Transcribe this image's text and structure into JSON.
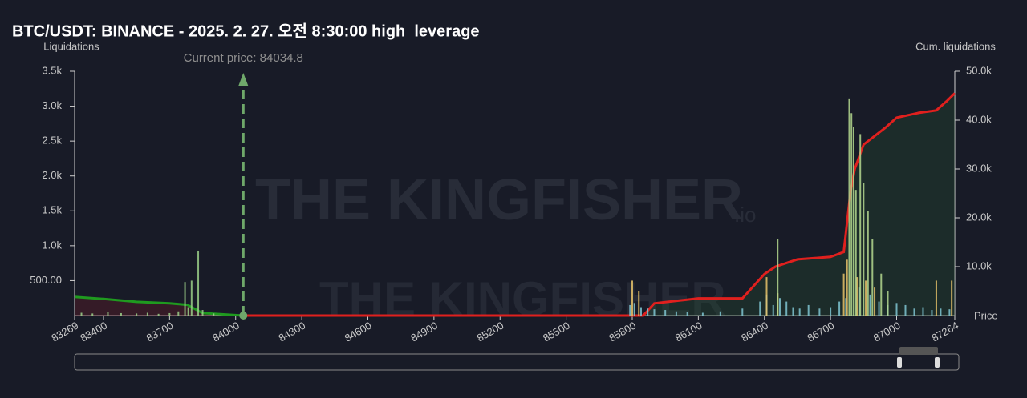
{
  "chart_data": {
    "type": "bar",
    "title": "BTC/USDT: BINANCE - 2025. 2. 27. 오전 8:30:00 high_leverage",
    "y_label": "Liquidations",
    "y2_label": "Cum. liquidations",
    "x_label": "Price",
    "annotation": "Current price: 84034.8",
    "current_price": 84034.8,
    "watermark": "THE KINGFISHER",
    "watermark_suffix": ".io",
    "xlim": [
      83269,
      87264
    ],
    "xticks": [
      83269,
      83400,
      83700,
      84000,
      84300,
      84600,
      84900,
      85200,
      85500,
      85800,
      86100,
      86400,
      86700,
      87000,
      87264
    ],
    "ylim": [
      0,
      3500
    ],
    "yticks": [
      {
        "value": 500,
        "label": "500.00"
      },
      {
        "value": 1000,
        "label": "1.0k"
      },
      {
        "value": 1500,
        "label": "1.5k"
      },
      {
        "value": 2000,
        "label": "2.0k"
      },
      {
        "value": 2500,
        "label": "2.5k"
      },
      {
        "value": 3000,
        "label": "3.0k"
      },
      {
        "value": 3500,
        "label": "3.5k"
      }
    ],
    "y2lim": [
      0,
      50000
    ],
    "y2ticks": [
      {
        "value": 10000,
        "label": "10.0k"
      },
      {
        "value": 20000,
        "label": "20.0k"
      },
      {
        "value": 30000,
        "label": "30.0k"
      },
      {
        "value": 40000,
        "label": "40.0k"
      },
      {
        "value": 50000,
        "label": "50.0k"
      }
    ],
    "series": [
      {
        "type": "bar",
        "color": "#9bd08a",
        "x": [
          83300,
          83350,
          83420,
          83480,
          83550,
          83600,
          83650,
          83700,
          83740,
          83770,
          83785,
          83800,
          83830,
          83850,
          83900
        ],
        "values": [
          40,
          30,
          50,
          35,
          30,
          40,
          25,
          35,
          60,
          480,
          120,
          500,
          930,
          80,
          30
        ]
      },
      {
        "type": "bar",
        "color": "#7fc6d2",
        "x": [
          85790,
          85810,
          85840,
          85870,
          85900,
          85950,
          86000,
          86050,
          86120,
          86200,
          86300,
          86380,
          86410,
          86440,
          86470,
          86500,
          86530,
          86560,
          86600,
          86650,
          86700,
          86740,
          86770,
          86830,
          86880,
          86920,
          86960,
          87000,
          87040,
          87080,
          87120,
          87160,
          87200,
          87240
        ],
        "values": [
          150,
          180,
          120,
          100,
          90,
          80,
          60,
          50,
          40,
          60,
          100,
          200,
          300,
          150,
          250,
          200,
          120,
          100,
          150,
          100,
          120,
          200,
          250,
          400,
          300,
          200,
          150,
          180,
          150,
          100,
          120,
          80,
          100,
          90
        ]
      },
      {
        "type": "bar",
        "color": "#e8c36a",
        "x": [
          85800,
          85830,
          86410,
          86460,
          86760,
          86775,
          86820,
          86860,
          86900,
          87180,
          87250
        ],
        "values": [
          500,
          350,
          550,
          320,
          600,
          800,
          550,
          500,
          400,
          500,
          500
        ]
      },
      {
        "type": "bar",
        "color": "#b5d98f",
        "x": [
          86460,
          86785,
          86795,
          86805,
          86815,
          86835,
          86850,
          86870,
          86890,
          86930,
          86960
        ],
        "values": [
          1100,
          3100,
          2900,
          2700,
          1800,
          2600,
          1900,
          1500,
          1100,
          600,
          350
        ]
      },
      {
        "type": "line",
        "axis": "y2",
        "color": "#1f9a1f",
        "area": "rgba(110,30,40,0.35)",
        "x": [
          83269,
          83400,
          83550,
          83700,
          83780,
          83850,
          84034.8
        ],
        "values": [
          3800,
          3400,
          2800,
          2500,
          2200,
          500,
          0
        ]
      },
      {
        "type": "line",
        "axis": "y2",
        "color": "#e0201e",
        "area": "rgba(40,85,50,0.3)",
        "x": [
          84034.8,
          85850,
          85900,
          86100,
          86300,
          86400,
          86450,
          86550,
          86700,
          86760,
          86790,
          86810,
          86850,
          86950,
          87000,
          87100,
          87180,
          87230,
          87264
        ],
        "values": [
          0,
          0,
          2500,
          3500,
          3500,
          8500,
          10000,
          11500,
          12000,
          13000,
          25000,
          30000,
          35000,
          38500,
          40500,
          41500,
          42000,
          44000,
          45500
        ]
      }
    ]
  }
}
